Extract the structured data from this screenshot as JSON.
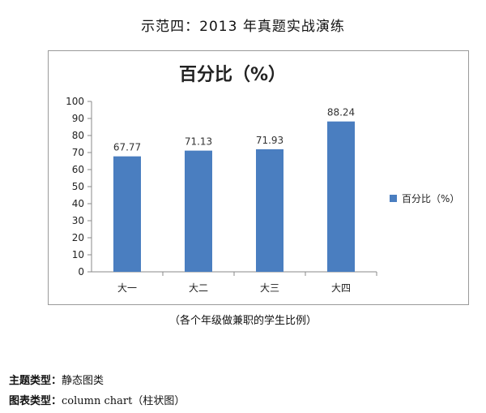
{
  "page": {
    "title": "示范四：2013 年真题实战演练",
    "caption": "（各个年级做兼职的学生比例）",
    "meta": [
      {
        "key": "主题类型：",
        "value": "静态图类"
      },
      {
        "key": "图表类型：",
        "value": "column chart（柱状图）"
      }
    ]
  },
  "colors": {
    "bar": "#4a7ec0",
    "axis": "#8a8a8a",
    "grid": "#d9d9d9"
  },
  "chart_data": {
    "type": "bar",
    "title": "百分比（%）",
    "categories": [
      "大一",
      "大二",
      "大三",
      "大四"
    ],
    "series": [
      {
        "name": "百分比（%）",
        "values": [
          67.77,
          71.13,
          71.93,
          88.24
        ]
      }
    ],
    "data_labels": [
      "67.77",
      "71.13",
      "71.93",
      "88.24"
    ],
    "ylim": [
      0,
      100
    ],
    "yticks": [
      0,
      10,
      20,
      30,
      40,
      50,
      60,
      70,
      80,
      90,
      100
    ],
    "xlabel": "",
    "ylabel": "",
    "grid": false,
    "legend": "right"
  }
}
